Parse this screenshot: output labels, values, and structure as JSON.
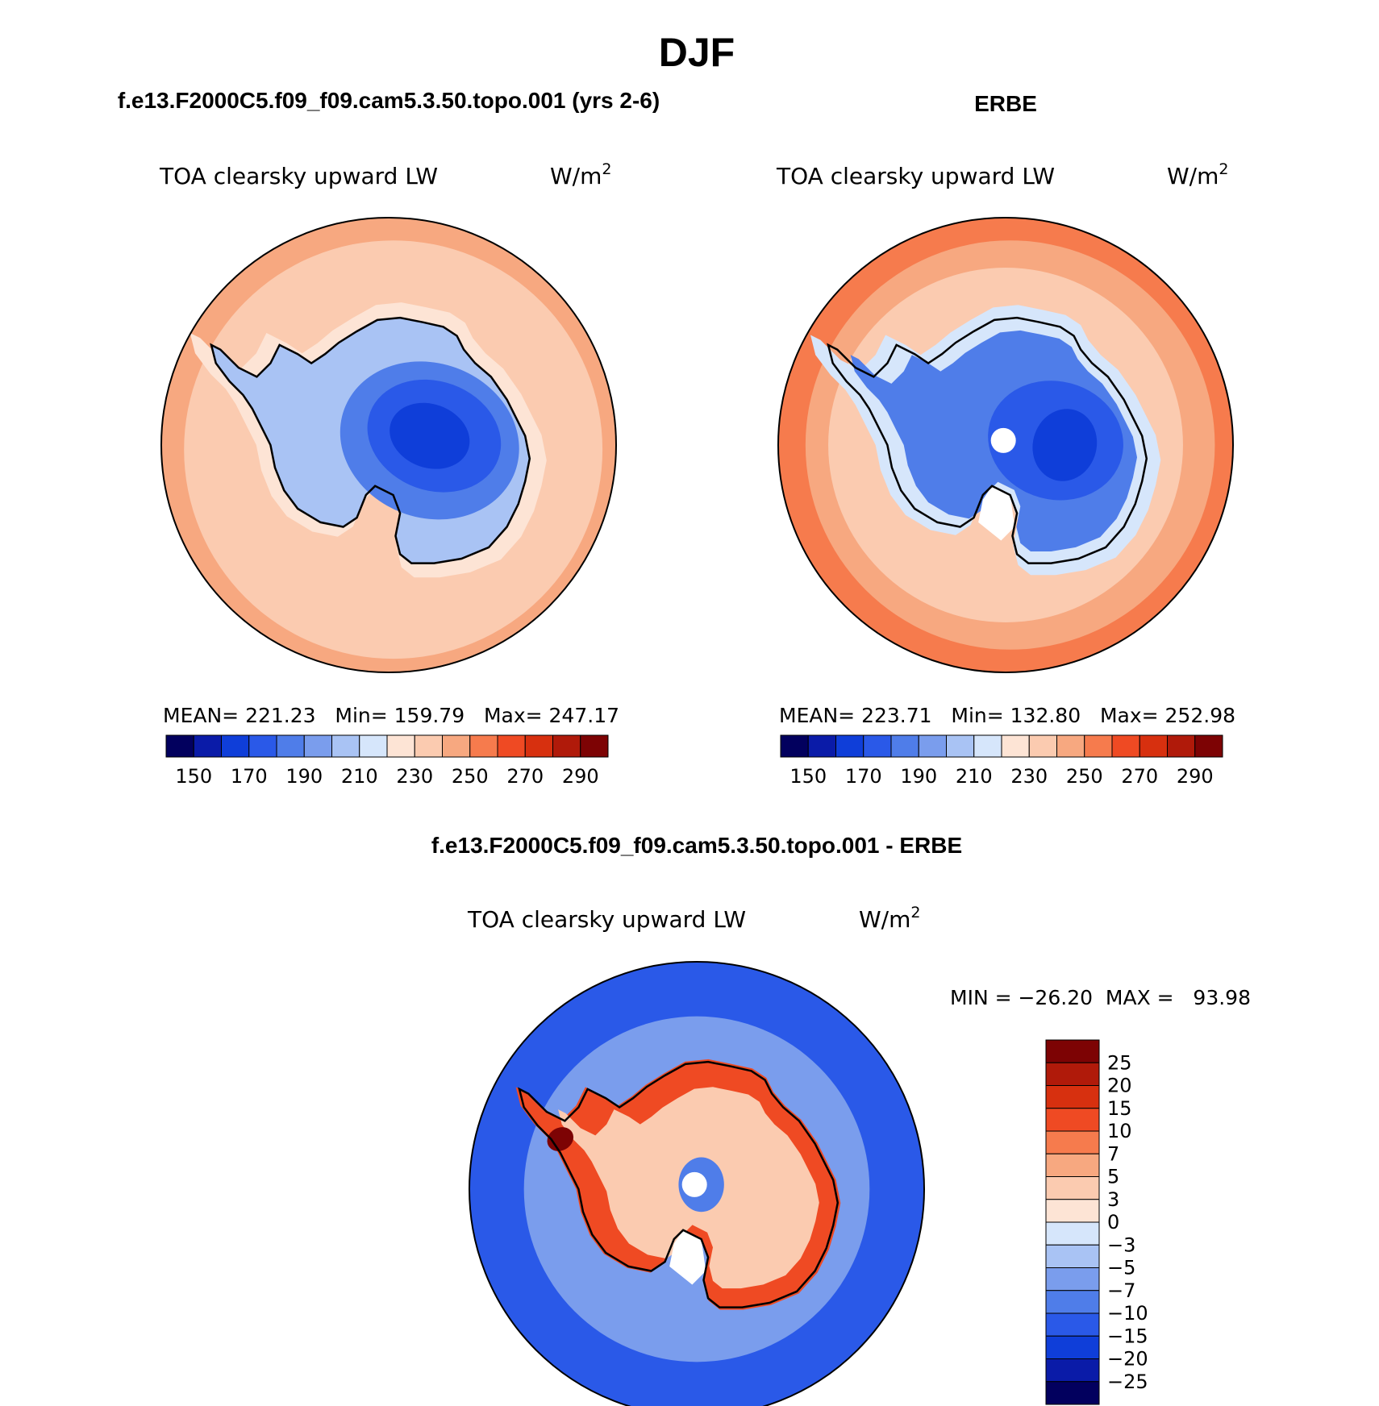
{
  "figure": {
    "title": "DJF"
  },
  "chart_data": [
    {
      "type": "heatmap",
      "projection": "south-polar-stereographic",
      "panel_title": "f.e13.F2000C5.f09_f09.cam5.3.50.topo.001 (yrs 2-6)",
      "variable": "TOA clearsky upward LW",
      "units": "W/m",
      "units_sup": "2",
      "stats_text": "MEAN= 221.23   Min= 159.79   Max= 247.17",
      "stats": {
        "mean": 221.23,
        "min": 159.79,
        "max": 247.17
      },
      "colorbar": {
        "orientation": "horizontal",
        "levels": [
          150,
          160,
          170,
          180,
          190,
          200,
          210,
          220,
          230,
          240,
          250,
          260,
          270,
          280,
          290
        ],
        "tick_labels": [
          "150",
          "170",
          "190",
          "210",
          "230",
          "250",
          "270",
          "290"
        ],
        "colors": [
          "#02005e",
          "#0a1ba8",
          "#0f3ed9",
          "#2a59e8",
          "#4f7de9",
          "#7a9ded",
          "#a9c3f4",
          "#d6e6fb",
          "#fde4d5",
          "#fbcbb0",
          "#f7a880",
          "#f67b4d",
          "#ef4a23",
          "#d7300f",
          "#b01a0a",
          "#7d0304"
        ]
      },
      "field_levels": {
        "ocean_far": 245,
        "ocean_near": 235,
        "coast_ice": 225,
        "ice_edge": 205,
        "interior": 185,
        "interior_core": 170,
        "plateau_min": 160
      }
    },
    {
      "type": "heatmap",
      "projection": "south-polar-stereographic",
      "panel_title": "ERBE",
      "variable": "TOA clearsky upward LW",
      "units": "W/m",
      "units_sup": "2",
      "stats_text": "MEAN= 223.71   Min= 132.80   Max= 252.98",
      "stats": {
        "mean": 223.71,
        "min": 132.8,
        "max": 252.98
      },
      "colorbar": {
        "orientation": "horizontal",
        "levels": [
          150,
          160,
          170,
          180,
          190,
          200,
          210,
          220,
          230,
          240,
          250,
          260,
          270,
          280,
          290
        ],
        "tick_labels": [
          "150",
          "170",
          "190",
          "210",
          "230",
          "250",
          "270",
          "290"
        ],
        "colors": [
          "#02005e",
          "#0a1ba8",
          "#0f3ed9",
          "#2a59e8",
          "#4f7de9",
          "#7a9ded",
          "#a9c3f4",
          "#d6e6fb",
          "#fde4d5",
          "#fbcbb0",
          "#f7a880",
          "#f67b4d",
          "#ef4a23",
          "#d7300f",
          "#b01a0a",
          "#7d0304"
        ]
      },
      "field_levels": {
        "ocean_far": 255,
        "ocean_mid": 245,
        "ocean_near": 235,
        "coast_ice": 215,
        "interior": 185,
        "interior_core": 170,
        "plateau_min": 160
      }
    },
    {
      "type": "heatmap",
      "projection": "south-polar-stereographic",
      "panel_title": "f.e13.F2000C5.f09_f09.cam5.3.50.topo.001 - ERBE",
      "variable": "TOA clearsky upward LW",
      "units": "W/m",
      "units_sup": "2",
      "minmax_text": "MIN = −26.20  MAX =   93.98",
      "stats": {
        "min": -26.2,
        "max": 93.98
      },
      "colorbar": {
        "orientation": "vertical",
        "levels": [
          -25,
          -20,
          -15,
          -10,
          -7,
          -5,
          -3,
          0,
          3,
          5,
          7,
          10,
          15,
          20,
          25
        ],
        "tick_labels": [
          "25",
          "20",
          "15",
          "10",
          "7",
          "5",
          "3",
          "0",
          "−3",
          "−5",
          "−7",
          "−10",
          "−15",
          "−20",
          "−25"
        ],
        "colors": [
          "#02005e",
          "#0a1ba8",
          "#0f3ed9",
          "#2a59e8",
          "#4f7de9",
          "#7a9ded",
          "#a9c3f4",
          "#d6e6fb",
          "#fde4d5",
          "#fbcbb0",
          "#f7a880",
          "#f67b4d",
          "#ef4a23",
          "#d7300f",
          "#b01a0a",
          "#7d0304"
        ]
      },
      "field_levels": {
        "ocean_far": -12,
        "ocean_near": -6,
        "coast_ring": 12,
        "interior": 4,
        "pole_core": -8,
        "peninsula": 25
      }
    }
  ]
}
